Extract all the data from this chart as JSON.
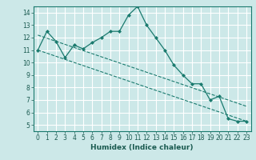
{
  "xlabel": "Humidex (Indice chaleur)",
  "ylabel": "",
  "bg_color": "#cce8e8",
  "grid_color": "#ffffff",
  "line_color": "#1a7a6e",
  "xlim": [
    -0.5,
    23.5
  ],
  "ylim": [
    4.5,
    14.5
  ],
  "yticks": [
    5,
    6,
    7,
    8,
    9,
    10,
    11,
    12,
    13,
    14
  ],
  "xticks": [
    0,
    1,
    2,
    3,
    4,
    5,
    6,
    7,
    8,
    9,
    10,
    11,
    12,
    13,
    14,
    15,
    16,
    17,
    18,
    19,
    20,
    21,
    22,
    23
  ],
  "line1_x": [
    0,
    1,
    2,
    3,
    4,
    5,
    6,
    7,
    8,
    9,
    10,
    11,
    12,
    13,
    14,
    15,
    16,
    17,
    18,
    19,
    20,
    21,
    22,
    23
  ],
  "line1_y": [
    11.0,
    12.5,
    11.7,
    10.4,
    11.4,
    11.1,
    11.6,
    12.0,
    12.5,
    12.5,
    13.8,
    14.5,
    13.0,
    12.0,
    11.0,
    9.8,
    9.0,
    8.3,
    8.3,
    7.0,
    7.3,
    5.5,
    5.3,
    5.3
  ],
  "line2_x": [
    0,
    23
  ],
  "line2_y": [
    12.2,
    6.5
  ],
  "line3_x": [
    0,
    23
  ],
  "line3_y": [
    11.0,
    5.3
  ],
  "tick_fontsize": 5.5,
  "xlabel_fontsize": 6.5
}
